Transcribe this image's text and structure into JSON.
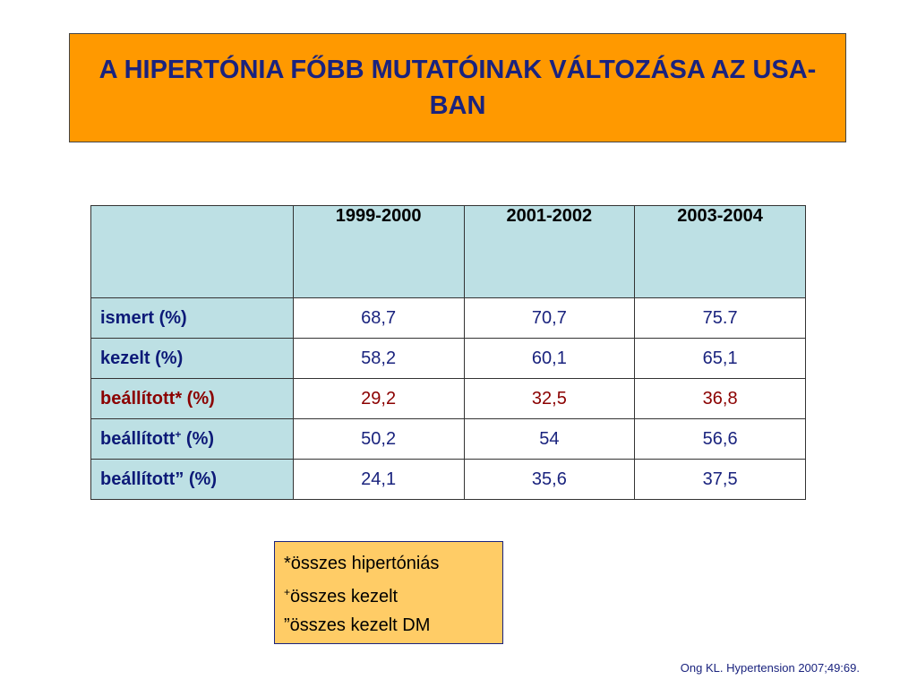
{
  "title": "A HIPERTÓNIA FŐBB MUTATÓINAK VÁLTOZÁSA AZ USA-BAN",
  "table": {
    "headers": [
      "",
      "1999-2000",
      "2001-2002",
      "2003-2004"
    ],
    "rows": [
      {
        "label": "ismert (%)",
        "values": [
          "68,7",
          "70,7",
          "75.7"
        ]
      },
      {
        "label": "kezelt (%)",
        "values": [
          "58,2",
          "60,1",
          "65,1"
        ]
      },
      {
        "label": "beállított* (%)",
        "values": [
          "29,2",
          "32,5",
          "36,8"
        ]
      },
      {
        "label_main": "beállított",
        "label_sup": "+",
        "label_tail": " (%)",
        "values": [
          "50,2",
          "54",
          "56,6"
        ]
      },
      {
        "label": "beállított” (%)",
        "values": [
          "24,1",
          "35,6",
          "37,5"
        ]
      }
    ]
  },
  "notes": {
    "line1": "*összes hipertóniás",
    "line2_sup": "+",
    "line2_text": "összes kezelt",
    "line3": "”összes kezelt DM"
  },
  "citation": "Ong KL. Hypertension 2007;49:69.",
  "colors": {
    "title_bg": "#ff9900",
    "title_text": "#1a237e",
    "table_header_bg": "#bde0e4",
    "value_text": "#1a237e",
    "highlight_text": "#8b0000",
    "note_bg": "#ffcc66"
  }
}
